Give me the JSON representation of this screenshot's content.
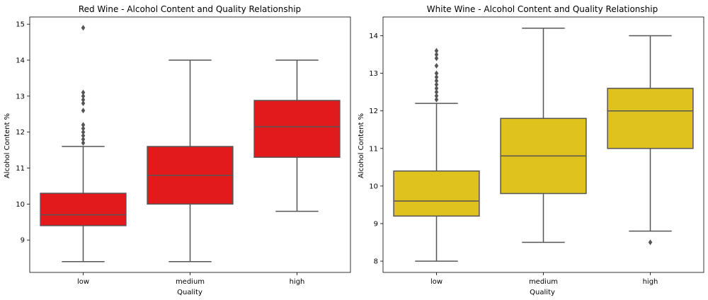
{
  "chart_data": [
    {
      "type": "boxplot",
      "title": "Red Wine - Alcohol Content and Quality Relationship",
      "xlabel": "Quality",
      "ylabel": "Alcohol Content %",
      "categories": [
        "low",
        "medium",
        "high"
      ],
      "ylim": [
        8.1,
        15.2
      ],
      "yticks": [
        9,
        10,
        11,
        12,
        13,
        14,
        15
      ],
      "color": "#e31a1c",
      "boxes": [
        {
          "label": "low",
          "whisker_low": 8.4,
          "q1": 9.4,
          "median": 9.7,
          "q3": 10.3,
          "whisker_high": 11.6,
          "outliers": [
            11.7,
            11.8,
            11.9,
            12.0,
            12.1,
            12.2,
            12.6,
            12.8,
            12.9,
            13.0,
            13.1,
            14.9
          ]
        },
        {
          "label": "medium",
          "whisker_low": 8.4,
          "q1": 10.0,
          "median": 10.8,
          "q3": 11.6,
          "whisker_high": 14.0,
          "outliers": []
        },
        {
          "label": "high",
          "whisker_low": 9.8,
          "q1": 11.3,
          "median": 12.15,
          "q3": 12.88,
          "whisker_high": 14.0,
          "outliers": []
        }
      ]
    },
    {
      "type": "boxplot",
      "title": "White Wine - Alcohol Content and Quality Relationship",
      "xlabel": "Quality",
      "ylabel": "Alcohol Content %",
      "categories": [
        "low",
        "medium",
        "high"
      ],
      "ylim": [
        7.7,
        14.5
      ],
      "yticks": [
        8,
        9,
        10,
        11,
        12,
        13,
        14
      ],
      "color": "#e0c21e",
      "boxes": [
        {
          "label": "low",
          "whisker_low": 8.0,
          "q1": 9.2,
          "median": 9.6,
          "q3": 10.4,
          "whisker_high": 12.2,
          "outliers": [
            12.3,
            12.4,
            12.5,
            12.6,
            12.7,
            12.8,
            12.9,
            13.0,
            13.2,
            13.4,
            13.5,
            13.6
          ]
        },
        {
          "label": "medium",
          "whisker_low": 8.5,
          "q1": 9.8,
          "median": 10.8,
          "q3": 11.8,
          "whisker_high": 14.2,
          "outliers": []
        },
        {
          "label": "high",
          "whisker_low": 8.8,
          "q1": 11.0,
          "median": 12.0,
          "q3": 12.6,
          "whisker_high": 14.0,
          "outliers": [
            8.5
          ]
        }
      ]
    }
  ],
  "colors": {
    "line": "#555555",
    "axis": "#000000"
  }
}
